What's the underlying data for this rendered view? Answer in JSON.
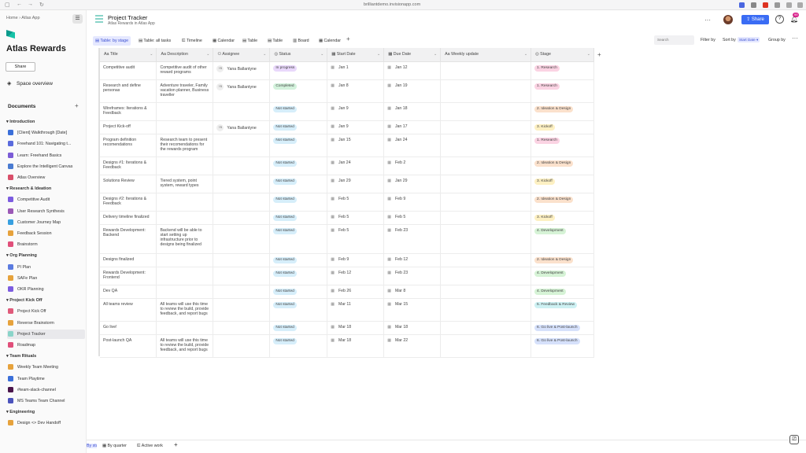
{
  "browser": {
    "url": "brilliantdemo.invisionapp.com"
  },
  "sidebar": {
    "crumb_home": "Home",
    "crumb_sep": "›",
    "crumb_app": "Atlas App",
    "space_title": "Atlas Rewards",
    "share_label": "Share",
    "space_overview": "Space overview",
    "documents_label": "Documents",
    "add": "+",
    "sections": [
      {
        "title": "Introduction",
        "items": [
          {
            "label": "[Client] Walkthrough [Date]",
            "color": "#3b6fd9"
          },
          {
            "label": "Freehand 101: Navigating t...",
            "color": "#5a6bdd"
          },
          {
            "label": "Learn: Freehand Basics",
            "color": "#7b5cd6"
          },
          {
            "label": "Explore the Intelligent Canvas",
            "color": "#4a7bd1"
          },
          {
            "label": "Atlas Overview",
            "color": "#d94f6a"
          }
        ]
      },
      {
        "title": "Research & Ideation",
        "items": [
          {
            "label": "Competitive Audit",
            "color": "#7c5ce0"
          },
          {
            "label": "User Research Synthesis",
            "color": "#9b59b6"
          },
          {
            "label": "Customer Journey Map",
            "color": "#38a0e0"
          },
          {
            "label": "Feedback Session",
            "color": "#e6a23c"
          },
          {
            "label": "Brainstorm",
            "color": "#e04f7a"
          }
        ]
      },
      {
        "title": "Org Planning",
        "items": [
          {
            "label": "PI Plan",
            "color": "#5b7be0"
          },
          {
            "label": "SAFe Plan",
            "color": "#e6a23c"
          },
          {
            "label": "OKR Planning",
            "color": "#7c5ce0"
          }
        ]
      },
      {
        "title": "Project Kick Off",
        "items": [
          {
            "label": "Project Kick Off",
            "color": "#e05a7a"
          },
          {
            "label": "Reverse Brainstorm",
            "color": "#e6a23c"
          },
          {
            "label": "Project Tracker",
            "color": "#8ad4c9",
            "active": true
          },
          {
            "label": "Roadmap",
            "color": "#e04f7a"
          }
        ]
      },
      {
        "title": "Team Rituals",
        "items": [
          {
            "label": "Weekly Team Meeting",
            "color": "#e6a23c"
          },
          {
            "label": "Team Playtime",
            "color": "#3b6fd9"
          },
          {
            "label": "#team-slack-channel",
            "color": "#4a154b"
          },
          {
            "label": "MS Teams Team Channel",
            "color": "#4b53bc"
          }
        ]
      },
      {
        "title": "Engineering",
        "items": [
          {
            "label": "Design <> Dev Handoff",
            "color": "#e6a23c"
          }
        ]
      }
    ]
  },
  "header": {
    "title": "Project Tracker",
    "subtitle": "Atlas Rewards in Atlas App",
    "more": "···",
    "share": "Share",
    "help": "?",
    "badge": "99"
  },
  "toolbar": {
    "views": [
      "Table: by stage",
      "Table: all tasks",
      "Timeline",
      "Calendar",
      "Table",
      "Table",
      "Board",
      "Calendar"
    ],
    "add_view": "+",
    "search_placeholder": "Search",
    "filter": "Filter by",
    "sort": "Sort by",
    "sort_value": "Start Date",
    "group": "Group by",
    "more": "···"
  },
  "table": {
    "columns": [
      "Title",
      "Description",
      "Assignee",
      "Status",
      "Start Date",
      "Due Date",
      "Weekly update",
      "Stage"
    ],
    "rows": [
      {
        "title": "Competitive audit",
        "desc": "Competitive audit of other reward programs",
        "assignee": "Yana Ballantyne",
        "ini": "YB",
        "status": "In progress",
        "start": "Jan 1",
        "due": "Jan 12",
        "stage": "1. Research"
      },
      {
        "title": "Research and define personas",
        "desc": "Adventure traveler, Family vacation planner, Business traveller",
        "assignee": "Yana Ballantyne",
        "ini": "YB",
        "status": "Completed",
        "start": "Jan 8",
        "due": "Jan 19",
        "stage": "1. Research"
      },
      {
        "title": "Wireframes: Iterations & Feedback",
        "desc": "",
        "assignee": "",
        "ini": "",
        "status": "Not started",
        "start": "Jan 9",
        "due": "Jan 18",
        "stage": "2. Ideation & Design"
      },
      {
        "title": "Project Kick-off",
        "desc": "",
        "assignee": "Yana Ballantyne",
        "ini": "YB",
        "status": "Not started",
        "start": "Jan 9",
        "due": "Jan 17",
        "stage": "3. Kickoff"
      },
      {
        "title": "Program definition recomendations",
        "desc": "Research team to present their recomendations for the rewards program",
        "assignee": "",
        "ini": "",
        "status": "Not started",
        "start": "Jan 15",
        "due": "Jan 24",
        "stage": "1. Research"
      },
      {
        "title": "Designs #1: Iterations & Feedback",
        "desc": "",
        "assignee": "",
        "ini": "",
        "status": "Not started",
        "start": "Jan 24",
        "due": "Feb 2",
        "stage": "2. Ideation & Design"
      },
      {
        "title": "Solutions Review",
        "desc": "Tiered system, point system, reward types",
        "assignee": "",
        "ini": "",
        "status": "Not started",
        "start": "Jan 29",
        "due": "Jan 29",
        "stage": "3. Kickoff"
      },
      {
        "title": "Designs #2: Iterations & Feedback",
        "desc": "",
        "assignee": "",
        "ini": "",
        "status": "Not started",
        "start": "Feb 5",
        "due": "Feb 9",
        "stage": "2. Ideation & Design"
      },
      {
        "title": "Delivery timeline finalized",
        "desc": "",
        "assignee": "",
        "ini": "",
        "status": "Not started",
        "start": "Feb 5",
        "due": "Feb 5",
        "stage": "3. Kickoff"
      },
      {
        "title": "Rewards Development: Backend",
        "desc": "Backend will be able to start setting up infrastructure prior to designs being finalized",
        "assignee": "",
        "ini": "",
        "status": "Not started",
        "start": "Feb 5",
        "due": "Feb 23",
        "stage": "4. Development"
      },
      {
        "title": "Designs finalized",
        "desc": "",
        "assignee": "",
        "ini": "",
        "status": "Not started",
        "start": "Feb 9",
        "due": "Feb 12",
        "stage": "2. Ideation & Design"
      },
      {
        "title": "Rewards Development: Frontend",
        "desc": "",
        "assignee": "",
        "ini": "",
        "status": "Not started",
        "start": "Feb 12",
        "due": "Feb 23",
        "stage": "4. Development"
      },
      {
        "title": "Dev QA",
        "desc": "",
        "assignee": "",
        "ini": "",
        "status": "Not started",
        "start": "Feb 26",
        "due": "Mar 8",
        "stage": "4. Development"
      },
      {
        "title": "All teams review",
        "desc": "All teams will use this time to review the build, provide feedback, and report bugs",
        "assignee": "",
        "ini": "",
        "status": "Not started",
        "start": "Mar 11",
        "due": "Mar 15",
        "stage": "5. Feedback & Review"
      },
      {
        "title": "Go live!",
        "desc": "",
        "assignee": "",
        "ini": "",
        "status": "Not started",
        "start": "Mar 18",
        "due": "Mar 18",
        "stage": "6. Go live & Post-launch"
      },
      {
        "title": "Post-launch QA",
        "desc": "All teams will use this time to review the build, provide feedback, and report bugs",
        "assignee": "",
        "ini": "",
        "status": "Not started",
        "start": "Mar 18",
        "due": "Mar 22",
        "stage": "6. Go live & Post-launch"
      }
    ],
    "status_colors": {
      "In progress": "#e9d8fb",
      "Completed": "#d3f2dc",
      "Not started": "#d6eefa"
    },
    "stage_colors": {
      "1. Research": "#fbd3e3",
      "2. Ideation & Design": "#fbe1cc",
      "3. Kickoff": "#fdf0c2",
      "4. Development": "#d6f3d6",
      "5. Feedback & Review": "#cdf1f3",
      "6. Go live & Post-launch": "#d6e1fb"
    }
  },
  "bottom": {
    "tabs": [
      "By stage",
      "By quarter",
      "Active work"
    ],
    "add": "+"
  }
}
